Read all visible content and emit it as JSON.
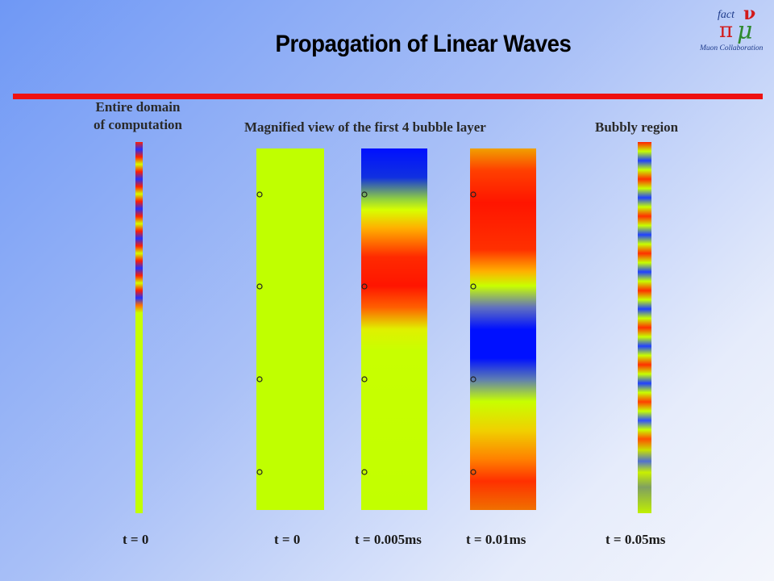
{
  "title": "Propagation of Linear Waves",
  "logo": {
    "text_top": "fact",
    "text_bottom": "Muon Collaboration"
  },
  "labels": {
    "entire_domain_line1": "Entire domain",
    "entire_domain_line2": "of computation",
    "magnified": "Magnified view of the first 4 bubble layer",
    "bubbly": "Bubbly region"
  },
  "time_labels": [
    "t = 0",
    "t = 0",
    "t = 0.005ms",
    "t = 0.01ms",
    "t = 0.05ms"
  ],
  "colors": {
    "accent_bar": "#ee1111",
    "field_red": "#ff1500",
    "field_yellow": "#c2ff00",
    "field_blue": "#0010ff"
  }
}
